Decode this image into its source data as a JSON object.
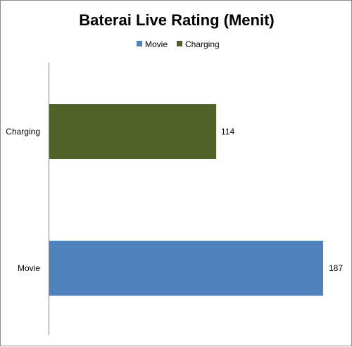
{
  "chart_data": {
    "type": "bar",
    "orientation": "horizontal",
    "title": "Baterai Live Rating (Menit)",
    "categories": [
      "Charging",
      "Movie"
    ],
    "series": [
      {
        "name": "Movie",
        "values": [
          null,
          187
        ],
        "color": "#4f81bd"
      },
      {
        "name": "Charging",
        "values": [
          114,
          null
        ],
        "color": "#4f6228"
      }
    ],
    "data_labels": [
      "114",
      "187"
    ],
    "xlim": [
      0,
      200
    ],
    "legend_position": "top",
    "grid": false
  }
}
